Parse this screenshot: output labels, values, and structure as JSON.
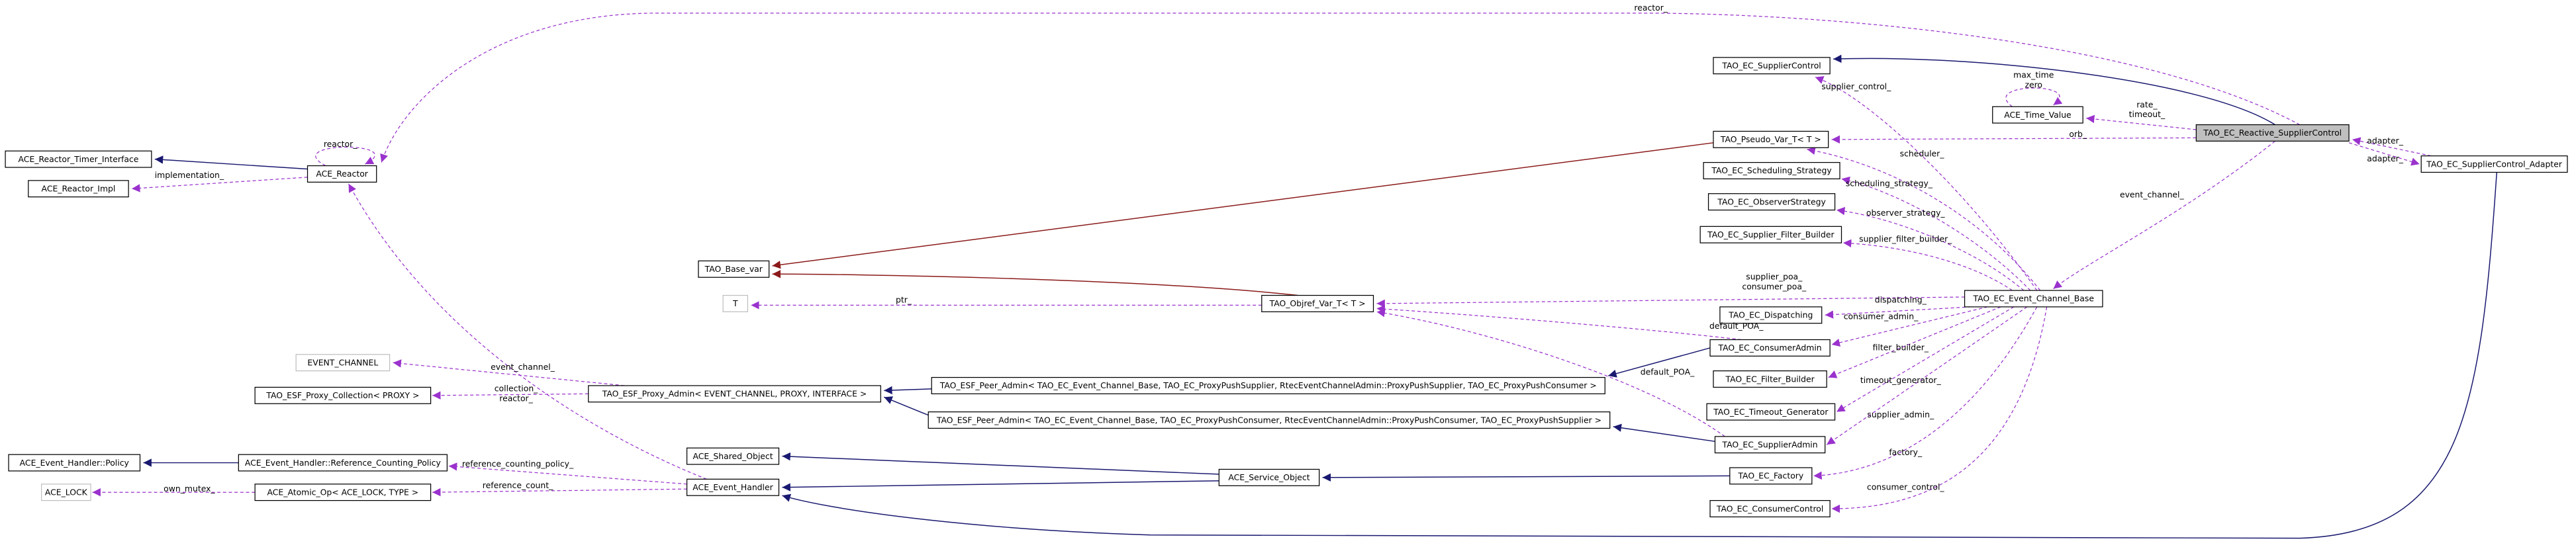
{
  "nodes": [
    {
      "label": "TAO_EC_SupplierControl"
    },
    {
      "label": "ACE_Time_Value"
    },
    {
      "label": "TAO_EC_Reactive_SupplierControl"
    },
    {
      "label": "TAO_Pseudo_Var_T< T >"
    },
    {
      "label": "TAO_EC_Scheduling_Strategy"
    },
    {
      "label": "TAO_EC_ObserverStrategy"
    },
    {
      "label": "TAO_EC_Supplier_Filter_Builder"
    },
    {
      "label": "TAO_EC_SupplierControl_Adapter"
    },
    {
      "label": "ACE_Reactor_Timer_Interface"
    },
    {
      "label": "ACE_Reactor"
    },
    {
      "label": "ACE_Reactor_Impl"
    },
    {
      "label": "TAO_Base_var"
    },
    {
      "label": "T"
    },
    {
      "label": "TAO_Objref_Var_T< T >"
    },
    {
      "label": "TAO_EC_Event_Channel_Base"
    },
    {
      "label": "TAO_EC_Dispatching"
    },
    {
      "label": "EVENT_CHANNEL"
    },
    {
      "label": "TAO_ESF_Proxy_Collection< PROXY >"
    },
    {
      "label": "TAO_ESF_Proxy_Admin< EVENT_CHANNEL, PROXY, INTERFACE >"
    },
    {
      "label": "TAO_EC_ConsumerAdmin"
    },
    {
      "label": "TAO_ESF_Peer_Admin< TAO_EC_Event_Channel_Base, TAO_EC_ProxyPushSupplier, RtecEventChannelAdmin::ProxyPushSupplier, TAO_EC_ProxyPushConsumer >"
    },
    {
      "label": "TAO_EC_Filter_Builder"
    },
    {
      "label": "TAO_EC_Timeout_Generator"
    },
    {
      "label": "TAO_ESF_Peer_Admin< TAO_EC_Event_Channel_Base, TAO_EC_ProxyPushConsumer, RtecEventChannelAdmin::ProxyPushConsumer, TAO_EC_ProxyPushSupplier >"
    },
    {
      "label": "TAO_EC_SupplierAdmin"
    },
    {
      "label": "ACE_Shared_Object"
    },
    {
      "label": "ACE_Service_Object"
    },
    {
      "label": "TAO_EC_Factory"
    },
    {
      "label": "ACE_Event_Handler::Policy"
    },
    {
      "label": "ACE_Event_Handler::Reference_Counting_Policy"
    },
    {
      "label": "ACE_Event_Handler"
    },
    {
      "label": "ACE_LOCK"
    },
    {
      "label": "ACE_Atomic_Op< ACE_LOCK, TYPE >"
    },
    {
      "label": "TAO_EC_ConsumerControl"
    }
  ],
  "edge_labels": [
    "reactor_",
    "reactor_",
    "implementation_",
    "max_time",
    "zero",
    "rate_",
    "timeout_",
    "supplier_control_",
    "orb_",
    "adapter_",
    "adapter_",
    "scheduler_",
    "scheduling_strategy_",
    "observer_strategy_",
    "supplier_filter_builder_",
    "event_channel_",
    "supplier_poa_",
    "consumer_poa_",
    "ptr_",
    "dispatching_",
    "default_POA_",
    "consumer_admin_",
    "default_POA_",
    "filter_builder_",
    "event_channel_",
    "collection_",
    "reactor_",
    "timeout_generator_",
    "supplier_admin_",
    "reference_counting_policy_",
    "own_mutex_",
    "reference_count_",
    "factory_",
    "consumer_control_"
  ]
}
